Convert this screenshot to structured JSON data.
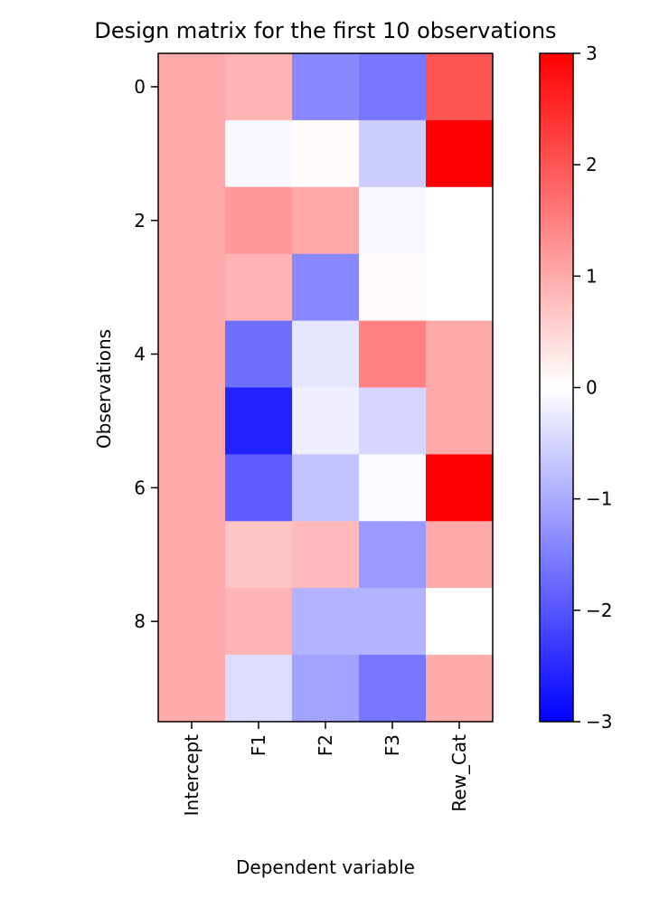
{
  "chart_data": {
    "type": "heatmap",
    "title": "Design matrix for the first 10 observations",
    "xlabel": "Dependent variable",
    "ylabel": "Observations",
    "columns": [
      "Intercept",
      "F1",
      "F2",
      "F3",
      "Rew_Cat"
    ],
    "rows": [
      0,
      1,
      2,
      3,
      4,
      5,
      6,
      7,
      8,
      9
    ],
    "y_tick_labels": [
      "0",
      "2",
      "4",
      "6",
      "8"
    ],
    "y_tick_rows": [
      0,
      2,
      4,
      6,
      8
    ],
    "values": [
      [
        1.0,
        0.9,
        -1.4,
        -1.6,
        2.0
      ],
      [
        1.0,
        -0.1,
        0.05,
        -0.6,
        3.0
      ],
      [
        1.0,
        1.2,
        1.0,
        -0.1,
        0.0
      ],
      [
        1.0,
        0.9,
        -1.4,
        0.05,
        0.0
      ],
      [
        1.0,
        -1.7,
        -0.3,
        1.5,
        1.0
      ],
      [
        1.0,
        -2.6,
        -0.2,
        -0.5,
        1.0
      ],
      [
        1.0,
        -1.9,
        -0.7,
        -0.05,
        3.0
      ],
      [
        1.0,
        0.7,
        0.8,
        -1.2,
        1.0
      ],
      [
        1.0,
        0.9,
        -0.9,
        -0.9,
        0.0
      ],
      [
        1.0,
        -0.4,
        -1.1,
        -1.6,
        1.0
      ]
    ],
    "colormap": "bwr",
    "colors": {
      "low": "#0000ff",
      "mid": "#ffffff",
      "high": "#ff0000"
    },
    "vmin": -3,
    "vmax": 3,
    "colorbar": {
      "ticks": [
        3,
        2,
        1,
        0,
        -1,
        -2,
        -3
      ],
      "tick_labels": [
        "3",
        "2",
        "1",
        "0",
        "−1",
        "−2",
        "−3"
      ]
    },
    "grid": false
  }
}
